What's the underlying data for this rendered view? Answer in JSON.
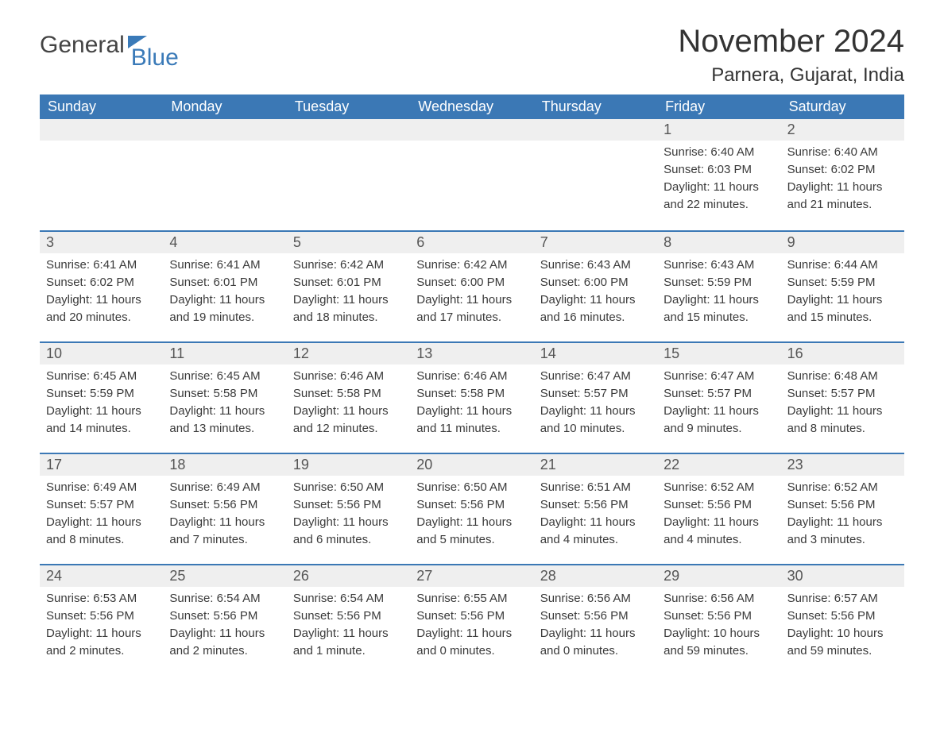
{
  "brand": {
    "part1": "General",
    "part2": "Blue"
  },
  "title": "November 2024",
  "location": "Parnera, Gujarat, India",
  "colors": {
    "header_bg": "#3b78b5",
    "header_text": "#ffffff",
    "daynum_bg": "#efefef",
    "text": "#333333",
    "border": "#3b78b5",
    "background": "#ffffff"
  },
  "day_names": [
    "Sunday",
    "Monday",
    "Tuesday",
    "Wednesday",
    "Thursday",
    "Friday",
    "Saturday"
  ],
  "weeks": [
    [
      {
        "day": "",
        "sunrise": "",
        "sunset": "",
        "daylight1": "",
        "daylight2": ""
      },
      {
        "day": "",
        "sunrise": "",
        "sunset": "",
        "daylight1": "",
        "daylight2": ""
      },
      {
        "day": "",
        "sunrise": "",
        "sunset": "",
        "daylight1": "",
        "daylight2": ""
      },
      {
        "day": "",
        "sunrise": "",
        "sunset": "",
        "daylight1": "",
        "daylight2": ""
      },
      {
        "day": "",
        "sunrise": "",
        "sunset": "",
        "daylight1": "",
        "daylight2": ""
      },
      {
        "day": "1",
        "sunrise": "Sunrise: 6:40 AM",
        "sunset": "Sunset: 6:03 PM",
        "daylight1": "Daylight: 11 hours",
        "daylight2": "and 22 minutes."
      },
      {
        "day": "2",
        "sunrise": "Sunrise: 6:40 AM",
        "sunset": "Sunset: 6:02 PM",
        "daylight1": "Daylight: 11 hours",
        "daylight2": "and 21 minutes."
      }
    ],
    [
      {
        "day": "3",
        "sunrise": "Sunrise: 6:41 AM",
        "sunset": "Sunset: 6:02 PM",
        "daylight1": "Daylight: 11 hours",
        "daylight2": "and 20 minutes."
      },
      {
        "day": "4",
        "sunrise": "Sunrise: 6:41 AM",
        "sunset": "Sunset: 6:01 PM",
        "daylight1": "Daylight: 11 hours",
        "daylight2": "and 19 minutes."
      },
      {
        "day": "5",
        "sunrise": "Sunrise: 6:42 AM",
        "sunset": "Sunset: 6:01 PM",
        "daylight1": "Daylight: 11 hours",
        "daylight2": "and 18 minutes."
      },
      {
        "day": "6",
        "sunrise": "Sunrise: 6:42 AM",
        "sunset": "Sunset: 6:00 PM",
        "daylight1": "Daylight: 11 hours",
        "daylight2": "and 17 minutes."
      },
      {
        "day": "7",
        "sunrise": "Sunrise: 6:43 AM",
        "sunset": "Sunset: 6:00 PM",
        "daylight1": "Daylight: 11 hours",
        "daylight2": "and 16 minutes."
      },
      {
        "day": "8",
        "sunrise": "Sunrise: 6:43 AM",
        "sunset": "Sunset: 5:59 PM",
        "daylight1": "Daylight: 11 hours",
        "daylight2": "and 15 minutes."
      },
      {
        "day": "9",
        "sunrise": "Sunrise: 6:44 AM",
        "sunset": "Sunset: 5:59 PM",
        "daylight1": "Daylight: 11 hours",
        "daylight2": "and 15 minutes."
      }
    ],
    [
      {
        "day": "10",
        "sunrise": "Sunrise: 6:45 AM",
        "sunset": "Sunset: 5:59 PM",
        "daylight1": "Daylight: 11 hours",
        "daylight2": "and 14 minutes."
      },
      {
        "day": "11",
        "sunrise": "Sunrise: 6:45 AM",
        "sunset": "Sunset: 5:58 PM",
        "daylight1": "Daylight: 11 hours",
        "daylight2": "and 13 minutes."
      },
      {
        "day": "12",
        "sunrise": "Sunrise: 6:46 AM",
        "sunset": "Sunset: 5:58 PM",
        "daylight1": "Daylight: 11 hours",
        "daylight2": "and 12 minutes."
      },
      {
        "day": "13",
        "sunrise": "Sunrise: 6:46 AM",
        "sunset": "Sunset: 5:58 PM",
        "daylight1": "Daylight: 11 hours",
        "daylight2": "and 11 minutes."
      },
      {
        "day": "14",
        "sunrise": "Sunrise: 6:47 AM",
        "sunset": "Sunset: 5:57 PM",
        "daylight1": "Daylight: 11 hours",
        "daylight2": "and 10 minutes."
      },
      {
        "day": "15",
        "sunrise": "Sunrise: 6:47 AM",
        "sunset": "Sunset: 5:57 PM",
        "daylight1": "Daylight: 11 hours",
        "daylight2": "and 9 minutes."
      },
      {
        "day": "16",
        "sunrise": "Sunrise: 6:48 AM",
        "sunset": "Sunset: 5:57 PM",
        "daylight1": "Daylight: 11 hours",
        "daylight2": "and 8 minutes."
      }
    ],
    [
      {
        "day": "17",
        "sunrise": "Sunrise: 6:49 AM",
        "sunset": "Sunset: 5:57 PM",
        "daylight1": "Daylight: 11 hours",
        "daylight2": "and 8 minutes."
      },
      {
        "day": "18",
        "sunrise": "Sunrise: 6:49 AM",
        "sunset": "Sunset: 5:56 PM",
        "daylight1": "Daylight: 11 hours",
        "daylight2": "and 7 minutes."
      },
      {
        "day": "19",
        "sunrise": "Sunrise: 6:50 AM",
        "sunset": "Sunset: 5:56 PM",
        "daylight1": "Daylight: 11 hours",
        "daylight2": "and 6 minutes."
      },
      {
        "day": "20",
        "sunrise": "Sunrise: 6:50 AM",
        "sunset": "Sunset: 5:56 PM",
        "daylight1": "Daylight: 11 hours",
        "daylight2": "and 5 minutes."
      },
      {
        "day": "21",
        "sunrise": "Sunrise: 6:51 AM",
        "sunset": "Sunset: 5:56 PM",
        "daylight1": "Daylight: 11 hours",
        "daylight2": "and 4 minutes."
      },
      {
        "day": "22",
        "sunrise": "Sunrise: 6:52 AM",
        "sunset": "Sunset: 5:56 PM",
        "daylight1": "Daylight: 11 hours",
        "daylight2": "and 4 minutes."
      },
      {
        "day": "23",
        "sunrise": "Sunrise: 6:52 AM",
        "sunset": "Sunset: 5:56 PM",
        "daylight1": "Daylight: 11 hours",
        "daylight2": "and 3 minutes."
      }
    ],
    [
      {
        "day": "24",
        "sunrise": "Sunrise: 6:53 AM",
        "sunset": "Sunset: 5:56 PM",
        "daylight1": "Daylight: 11 hours",
        "daylight2": "and 2 minutes."
      },
      {
        "day": "25",
        "sunrise": "Sunrise: 6:54 AM",
        "sunset": "Sunset: 5:56 PM",
        "daylight1": "Daylight: 11 hours",
        "daylight2": "and 2 minutes."
      },
      {
        "day": "26",
        "sunrise": "Sunrise: 6:54 AM",
        "sunset": "Sunset: 5:56 PM",
        "daylight1": "Daylight: 11 hours",
        "daylight2": "and 1 minute."
      },
      {
        "day": "27",
        "sunrise": "Sunrise: 6:55 AM",
        "sunset": "Sunset: 5:56 PM",
        "daylight1": "Daylight: 11 hours",
        "daylight2": "and 0 minutes."
      },
      {
        "day": "28",
        "sunrise": "Sunrise: 6:56 AM",
        "sunset": "Sunset: 5:56 PM",
        "daylight1": "Daylight: 11 hours",
        "daylight2": "and 0 minutes."
      },
      {
        "day": "29",
        "sunrise": "Sunrise: 6:56 AM",
        "sunset": "Sunset: 5:56 PM",
        "daylight1": "Daylight: 10 hours",
        "daylight2": "and 59 minutes."
      },
      {
        "day": "30",
        "sunrise": "Sunrise: 6:57 AM",
        "sunset": "Sunset: 5:56 PM",
        "daylight1": "Daylight: 10 hours",
        "daylight2": "and 59 minutes."
      }
    ]
  ]
}
